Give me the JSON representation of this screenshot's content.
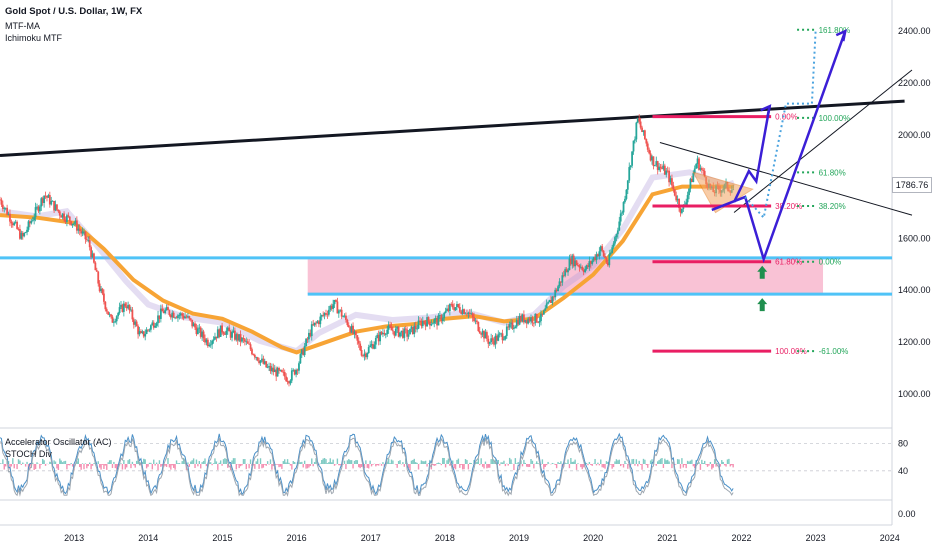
{
  "header": {
    "symbol": "Gold Spot / U.S. Dollar, 1W, FX",
    "indicators": [
      "MTF-MA",
      "Ichimoku MTF"
    ]
  },
  "oscillator_panel": {
    "indicators": [
      "Accelerator Oscillator (AC)",
      "STOCH Div"
    ],
    "y_ticks": [
      "80",
      "40"
    ]
  },
  "bottom_panel": {
    "y_ticks": [
      "0.00"
    ]
  },
  "current_price": "1786.76",
  "colors": {
    "up_candle": "#26a69a",
    "down_candle": "#ef5350",
    "ma_orange": "#f7a435",
    "trendline": "#131722",
    "support_blue": "#4fc3f7",
    "zone_pink": "#f8bbd0",
    "projection_purple": "#3b1fd6",
    "projection_dotted": "#4aa3df",
    "fib_red": "#e91e63",
    "fib_green": "#23a65a",
    "triangle_fill": "#f4a460"
  },
  "chart_data": {
    "type": "line",
    "title": "Gold Spot / U.S. Dollar, 1W, FX",
    "x_ticks": [
      "2013",
      "2014",
      "2015",
      "2016",
      "2017",
      "2018",
      "2019",
      "2020",
      "2021",
      "2022",
      "2023",
      "2024"
    ],
    "y_ticks": [
      2400,
      2200,
      2000,
      1800,
      1600,
      1400,
      1200,
      1000
    ],
    "ylim": [
      880,
      2520
    ],
    "xlim": [
      2012.0,
      2024.3
    ],
    "series": [
      {
        "values_x": [
          2012.0,
          2012.3,
          2012.6,
          2012.8,
          2013.0,
          2013.2,
          2013.35,
          2013.5,
          2013.7,
          2013.9,
          2014.0,
          2014.2,
          2014.5,
          2014.8,
          2015.0,
          2015.3,
          2015.6,
          2015.9,
          2016.0,
          2016.2,
          2016.5,
          2016.7,
          2016.9,
          2017.2,
          2017.5,
          2017.7,
          2017.9,
          2018.1,
          2018.3,
          2018.6,
          2018.8,
          2019.0,
          2019.3,
          2019.5,
          2019.7,
          2019.9,
          2020.1,
          2020.2,
          2020.4,
          2020.6,
          2020.8,
          2021.0,
          2021.2,
          2021.4,
          2021.6,
          2021.8,
          2021.9
        ],
        "values_y": [
          1750,
          1600,
          1770,
          1700,
          1660,
          1580,
          1400,
          1280,
          1350,
          1220,
          1250,
          1320,
          1300,
          1200,
          1250,
          1200,
          1100,
          1060,
          1100,
          1250,
          1350,
          1270,
          1150,
          1250,
          1230,
          1280,
          1280,
          1340,
          1320,
          1200,
          1230,
          1290,
          1290,
          1400,
          1520,
          1480,
          1560,
          1500,
          1720,
          2060,
          1900,
          1850,
          1700,
          1900,
          1780,
          1800,
          1787
        ]
      },
      {
        "values_x": [
          2012.0,
          2012.5,
          2012.9,
          2013.3,
          2013.7,
          2014.0,
          2014.5,
          2015.0,
          2015.5,
          2016.0,
          2016.3,
          2016.8,
          2017.3,
          2017.8,
          2018.3,
          2018.8,
          2019.2,
          2019.6,
          2020.0,
          2020.4,
          2020.8,
          2021.3,
          2021.8,
          2021.9
        ],
        "values_y": [
          1690,
          1670,
          1690,
          1560,
          1420,
          1330,
          1280,
          1260,
          1190,
          1150,
          1220,
          1290,
          1270,
          1280,
          1300,
          1260,
          1290,
          1400,
          1480,
          1620,
          1820,
          1840,
          1790,
          1800
        ]
      },
      {
        "name": "MTF-MA",
        "values_x": [
          2012.0,
          2012.5,
          2013.0,
          2013.4,
          2013.8,
          2014.2,
          2014.6,
          2015.0,
          2015.4,
          2015.8,
          2016.0,
          2016.4,
          2016.8,
          2017.2,
          2017.6,
          2018.0,
          2018.4,
          2018.8,
          2019.2,
          2019.6,
          2020.0,
          2020.4,
          2020.8,
          2021.2,
          2021.6,
          2021.9
        ],
        "values_y": [
          1690,
          1680,
          1660,
          1560,
          1440,
          1360,
          1310,
          1290,
          1240,
          1180,
          1160,
          1200,
          1240,
          1260,
          1270,
          1290,
          1300,
          1280,
          1290,
          1370,
          1460,
          1590,
          1770,
          1800,
          1800,
          1800
        ]
      }
    ],
    "trendlines": [
      {
        "x": [
          2012.0,
          2024.2
        ],
        "y": [
          1920,
          2130
        ],
        "label": ""
      },
      {
        "x": [
          2020.9,
          2024.3
        ],
        "y": [
          1970,
          1690
        ],
        "label": ""
      },
      {
        "x": [
          2021.9,
          2024.3
        ],
        "y": [
          1700,
          2250
        ],
        "label": ""
      }
    ],
    "horizontal_levels": [
      {
        "y": 1525,
        "color": "support_blue"
      },
      {
        "y": 1385,
        "color": "support_blue"
      }
    ],
    "zone": {
      "x": [
        2016.15,
        2023.1
      ],
      "y": [
        1385,
        1525
      ]
    },
    "triangle": {
      "x": [
        2021.35,
        2022.15,
        2021.65
      ],
      "y": [
        1855,
        1790,
        1700
      ]
    },
    "fib_left": [
      {
        "label": "0.00%",
        "y": 2070
      },
      {
        "label": "38.20%",
        "y": 1725
      },
      {
        "label": "61.80%",
        "y": 1510
      },
      {
        "label": "100.00%",
        "y": 1165
      }
    ],
    "fib_right": [
      {
        "label": "161.80%",
        "y": 2405
      },
      {
        "label": "100.00%",
        "y": 2065
      },
      {
        "label": "61.80%",
        "y": 1855
      },
      {
        "label": "38.20%",
        "y": 1725
      },
      {
        "label": "0.00%",
        "y": 1510
      },
      {
        "label": "-61.00%",
        "y": 1165
      }
    ],
    "projection_paths": [
      {
        "x": [
          2021.9,
          2022.1,
          2022.2,
          2022.28,
          2022.38
        ],
        "y": [
          1740,
          1860,
          1820,
          1950,
          2110
        ],
        "style": "solid"
      },
      {
        "x": [
          2021.6,
          2022.05,
          2022.3,
          2023.4
        ],
        "y": [
          1710,
          1760,
          1520,
          2400
        ],
        "style": "solid"
      },
      {
        "x": [
          2022.05,
          2022.3,
          2022.6,
          2022.95,
          2023.0
        ],
        "y": [
          1760,
          1680,
          2120,
          2120,
          2400
        ],
        "style": "dotted"
      }
    ],
    "arrows_up": [
      2022.28,
      2022.28
    ],
    "grid": false,
    "legend": "top-left"
  }
}
